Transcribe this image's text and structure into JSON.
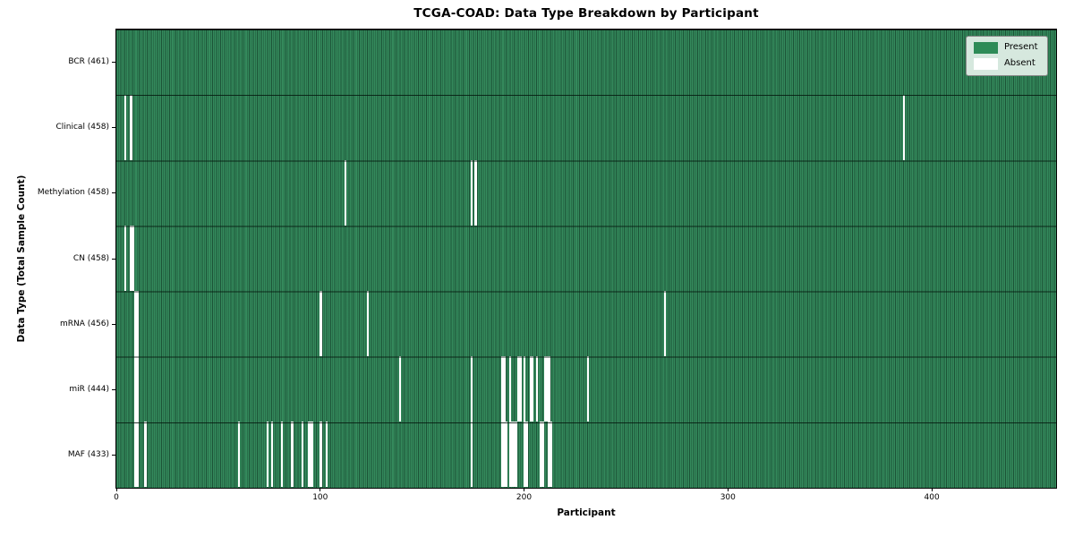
{
  "title": "TCGA-COAD: Data Type Breakdown by Participant",
  "x_axis": {
    "label": "Participant",
    "ticks": [
      0,
      100,
      200,
      300,
      400
    ]
  },
  "y_axis": {
    "label": "Data Type (Total Sample Count)"
  },
  "legend": {
    "present_label": "Present",
    "absent_label": "Absent"
  },
  "colors": {
    "present": "#2e8b57",
    "absent": "#ffffff",
    "cell_edge": "#123d26",
    "legend_bg": "#d6e8de"
  },
  "chart_data": {
    "type": "heatmap",
    "title": "TCGA-COAD: Data Type Breakdown by Participant",
    "xlabel": "Participant",
    "ylabel": "Data Type (Total Sample Count)",
    "legend_entries": [
      "Present",
      "Absent"
    ],
    "legend_position": "upper right",
    "n_participants": 461,
    "x_range": [
      0,
      461
    ],
    "cell_states": [
      "present",
      "absent"
    ],
    "rows": [
      {
        "label": "BCR (461)",
        "data_type": "BCR",
        "present_count": 461,
        "absent_participants": []
      },
      {
        "label": "Clinical (458)",
        "data_type": "Clinical",
        "present_count": 458,
        "absent_participants": [
          4,
          7,
          386
        ]
      },
      {
        "label": "Methylation (458)",
        "data_type": "Methylation",
        "present_count": 458,
        "absent_participants": [
          112,
          174,
          176
        ]
      },
      {
        "label": "CN (458)",
        "data_type": "CN",
        "present_count": 458,
        "absent_participants": [
          4,
          7,
          8
        ]
      },
      {
        "label": "mRNA (456)",
        "data_type": "mRNA",
        "present_count": 456,
        "absent_participants": [
          9,
          10,
          100,
          123,
          269
        ]
      },
      {
        "label": "miR (444)",
        "data_type": "miR",
        "present_count": 444,
        "absent_participants": [
          9,
          10,
          139,
          174,
          189,
          190,
          193,
          197,
          198,
          200,
          203,
          204,
          206,
          210,
          211,
          212,
          231
        ]
      },
      {
        "label": "MAF (433)",
        "data_type": "MAF",
        "present_count": 433,
        "absent_participants": [
          9,
          10,
          14,
          60,
          74,
          76,
          81,
          86,
          91,
          94,
          95,
          96,
          100,
          103,
          174,
          189,
          190,
          191,
          193,
          194,
          195,
          196,
          200,
          201,
          208,
          209,
          212,
          213
        ]
      }
    ]
  }
}
